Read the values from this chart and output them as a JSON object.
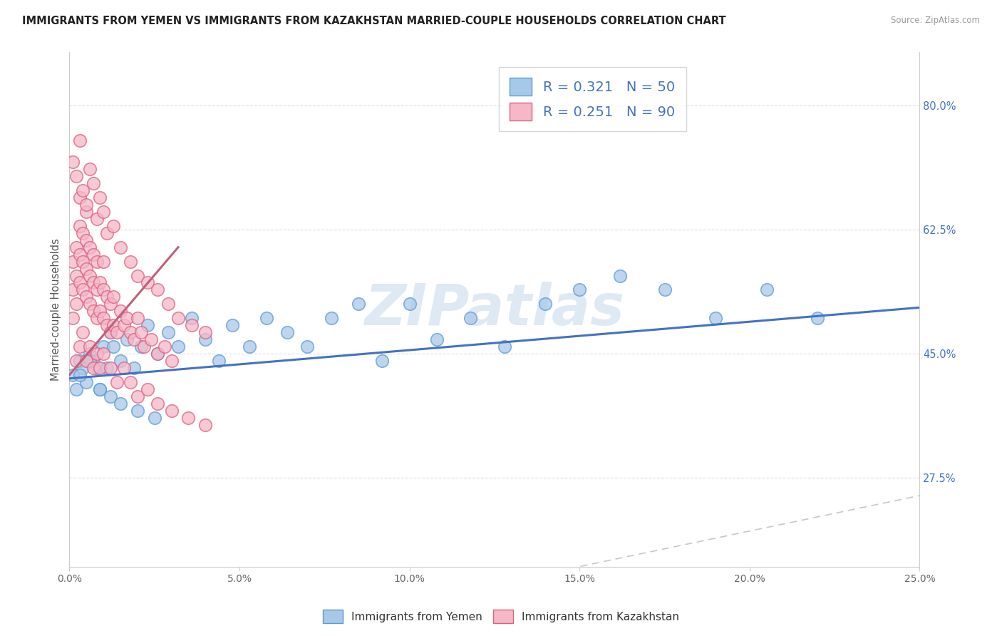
{
  "title": "IMMIGRANTS FROM YEMEN VS IMMIGRANTS FROM KAZAKHSTAN MARRIED-COUPLE HOUSEHOLDS CORRELATION CHART",
  "source": "Source: ZipAtlas.com",
  "ylabel": "Married-couple Households",
  "y_ticks_right_labels": [
    "27.5%",
    "45.0%",
    "62.5%",
    "80.0%"
  ],
  "y_ticks_right_vals": [
    0.275,
    0.45,
    0.625,
    0.8
  ],
  "legend_r1": "R = 0.321",
  "legend_n1": "N = 50",
  "legend_r2": "R = 0.251",
  "legend_n2": "N = 90",
  "color_blue_fill": "#A8C8E8",
  "color_blue_edge": "#5B9BD5",
  "color_pink_fill": "#F4B8C8",
  "color_pink_edge": "#E06080",
  "color_blue_line": "#4472C4",
  "color_pink_line": "#C0607A",
  "color_diag": "#C8C8C8",
  "xlim": [
    0.0,
    0.25
  ],
  "ylim": [
    0.15,
    0.875
  ],
  "x_bottom_ticks": [
    0.0,
    0.05,
    0.1,
    0.15,
    0.2,
    0.25
  ],
  "watermark": "ZIPatlas",
  "background_color": "#FFFFFF",
  "grid_color": "#DDDDDD",
  "blue_x": [
    0.001,
    0.002,
    0.003,
    0.004,
    0.005,
    0.006,
    0.007,
    0.008,
    0.009,
    0.01,
    0.011,
    0.012,
    0.013,
    0.015,
    0.017,
    0.019,
    0.021,
    0.023,
    0.026,
    0.029,
    0.032,
    0.036,
    0.04,
    0.044,
    0.048,
    0.053,
    0.058,
    0.064,
    0.07,
    0.077,
    0.085,
    0.092,
    0.1,
    0.108,
    0.118,
    0.128,
    0.14,
    0.15,
    0.162,
    0.175,
    0.19,
    0.205,
    0.22,
    0.003,
    0.006,
    0.009,
    0.012,
    0.015,
    0.02,
    0.025
  ],
  "blue_y": [
    0.42,
    0.4,
    0.44,
    0.43,
    0.41,
    0.45,
    0.44,
    0.43,
    0.4,
    0.46,
    0.43,
    0.48,
    0.46,
    0.44,
    0.47,
    0.43,
    0.46,
    0.49,
    0.45,
    0.48,
    0.46,
    0.5,
    0.47,
    0.44,
    0.49,
    0.46,
    0.5,
    0.48,
    0.46,
    0.5,
    0.52,
    0.44,
    0.52,
    0.47,
    0.5,
    0.46,
    0.52,
    0.54,
    0.56,
    0.54,
    0.5,
    0.54,
    0.5,
    0.42,
    0.44,
    0.4,
    0.39,
    0.38,
    0.37,
    0.36
  ],
  "pink_x": [
    0.001,
    0.001,
    0.001,
    0.002,
    0.002,
    0.002,
    0.003,
    0.003,
    0.003,
    0.003,
    0.004,
    0.004,
    0.004,
    0.005,
    0.005,
    0.005,
    0.005,
    0.006,
    0.006,
    0.006,
    0.007,
    0.007,
    0.007,
    0.008,
    0.008,
    0.008,
    0.009,
    0.009,
    0.01,
    0.01,
    0.01,
    0.011,
    0.011,
    0.012,
    0.012,
    0.013,
    0.013,
    0.014,
    0.015,
    0.016,
    0.017,
    0.018,
    0.019,
    0.02,
    0.021,
    0.022,
    0.024,
    0.026,
    0.028,
    0.03,
    0.001,
    0.002,
    0.003,
    0.004,
    0.005,
    0.006,
    0.007,
    0.008,
    0.009,
    0.01,
    0.011,
    0.013,
    0.015,
    0.018,
    0.02,
    0.023,
    0.026,
    0.029,
    0.032,
    0.036,
    0.04,
    0.002,
    0.003,
    0.004,
    0.005,
    0.006,
    0.007,
    0.008,
    0.009,
    0.01,
    0.012,
    0.014,
    0.016,
    0.018,
    0.02,
    0.023,
    0.026,
    0.03,
    0.035,
    0.04
  ],
  "pink_y": [
    0.5,
    0.54,
    0.58,
    0.52,
    0.56,
    0.6,
    0.55,
    0.59,
    0.63,
    0.67,
    0.54,
    0.58,
    0.62,
    0.53,
    0.57,
    0.61,
    0.65,
    0.52,
    0.56,
    0.6,
    0.51,
    0.55,
    0.59,
    0.5,
    0.54,
    0.58,
    0.51,
    0.55,
    0.5,
    0.54,
    0.58,
    0.49,
    0.53,
    0.48,
    0.52,
    0.49,
    0.53,
    0.48,
    0.51,
    0.49,
    0.5,
    0.48,
    0.47,
    0.5,
    0.48,
    0.46,
    0.47,
    0.45,
    0.46,
    0.44,
    0.72,
    0.7,
    0.75,
    0.68,
    0.66,
    0.71,
    0.69,
    0.64,
    0.67,
    0.65,
    0.62,
    0.63,
    0.6,
    0.58,
    0.56,
    0.55,
    0.54,
    0.52,
    0.5,
    0.49,
    0.48,
    0.44,
    0.46,
    0.48,
    0.44,
    0.46,
    0.43,
    0.45,
    0.43,
    0.45,
    0.43,
    0.41,
    0.43,
    0.41,
    0.39,
    0.4,
    0.38,
    0.37,
    0.36,
    0.35
  ]
}
